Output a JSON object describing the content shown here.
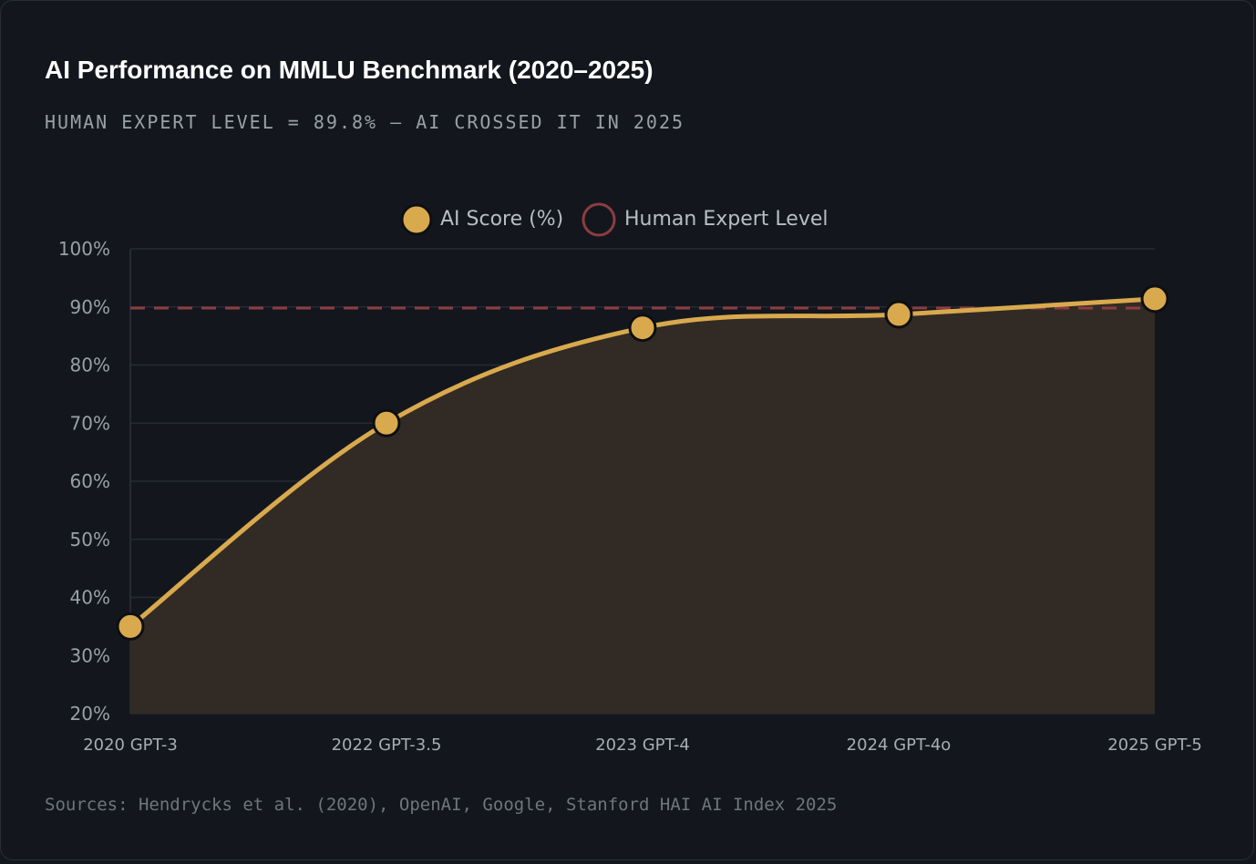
{
  "header": {
    "title": "AI Performance on MMLU Benchmark (2020–2025)",
    "subtitle": "HUMAN EXPERT LEVEL = 89.8% — AI CROSSED IT IN 2025"
  },
  "footer": {
    "source": "Sources: Hendrycks et al. (2020), OpenAI, Google, Stanford HAI AI Index 2025"
  },
  "colors": {
    "background": "#13171d",
    "ai_line": "#d9a94e",
    "ai_fill": "#322b25",
    "human_line": "#8c3d42",
    "grid": "#262a31"
  },
  "chart_data": {
    "type": "line",
    "title": "AI Performance on MMLU Benchmark (2020–2025)",
    "categories": [
      "2020 GPT-3",
      "2022 GPT-3.5",
      "2023 GPT-4",
      "2024 GPT-4o",
      "2025 GPT-5"
    ],
    "series": [
      {
        "name": "AI Score (%)",
        "values": [
          35,
          70,
          86.4,
          88.7,
          91.4
        ],
        "fill": true,
        "smooth": true
      },
      {
        "name": "Human Expert Level",
        "values": [
          89.8,
          89.8,
          89.8,
          89.8,
          89.8
        ],
        "dashed": true
      }
    ],
    "ylim": [
      20,
      100
    ],
    "yticks": [
      "20%",
      "30%",
      "40%",
      "50%",
      "60%",
      "70%",
      "80%",
      "90%",
      "100%"
    ],
    "ytick_values": [
      20,
      30,
      40,
      50,
      60,
      70,
      80,
      90,
      100
    ],
    "grid": true,
    "legend": "top-center"
  }
}
